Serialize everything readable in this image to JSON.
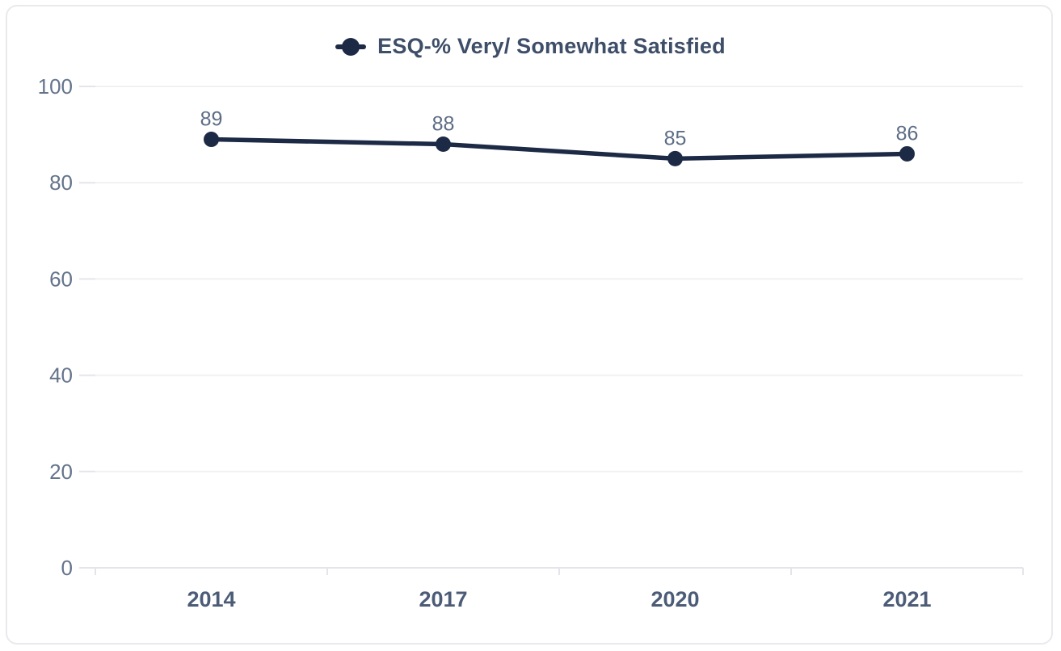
{
  "chart_data": {
    "type": "line",
    "title": "",
    "legend": {
      "label": "ESQ-% Very/ Somewhat Satisfied",
      "position": "top-center"
    },
    "categories": [
      "2014",
      "2017",
      "2020",
      "2021"
    ],
    "series": [
      {
        "name": "ESQ-% Very/ Somewhat Satisfied",
        "values": [
          89,
          88,
          85,
          86
        ]
      }
    ],
    "data_labels": [
      89,
      88,
      85,
      86
    ],
    "xlabel": "",
    "ylabel": "",
    "ylim": [
      0,
      100
    ],
    "yticks": [
      0,
      20,
      40,
      60,
      80,
      100
    ],
    "grid": "horizontal"
  },
  "colors": {
    "series_line": "#1d2a46",
    "marker_fill": "#1d2a46",
    "legend_text": "#3e4e68",
    "data_label_text": "#5d6d86",
    "y_tick_text": "#64748b",
    "x_tick_text": "#4c5c77",
    "gridline": "#f1f1f4",
    "axis_line": "#e4e5ea",
    "card_border": "#e9e9ee",
    "background": "#ffffff"
  }
}
